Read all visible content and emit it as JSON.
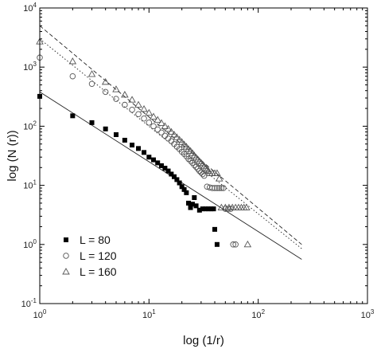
{
  "chart_data": {
    "type": "scatter",
    "title": "",
    "xlabel": "log (1/r)",
    "ylabel": "log (N (r))",
    "xscale": "log",
    "yscale": "log",
    "xlim": [
      1,
      1000
    ],
    "ylim": [
      0.1,
      10000
    ],
    "x_ticks": [
      {
        "base": "10",
        "exp": "0"
      },
      {
        "base": "10",
        "exp": "1"
      },
      {
        "base": "10",
        "exp": "2"
      },
      {
        "base": "10",
        "exp": "3"
      }
    ],
    "y_ticks": [
      {
        "base": "10",
        "exp": "-1"
      },
      {
        "base": "10",
        "exp": "0"
      },
      {
        "base": "10",
        "exp": "1"
      },
      {
        "base": "10",
        "exp": "2"
      },
      {
        "base": "10",
        "exp": "3"
      },
      {
        "base": "10",
        "exp": "4"
      }
    ],
    "grid": false,
    "legend_position": "bottom-left",
    "series": [
      {
        "name": "L = 80",
        "marker": "filled-square",
        "color": "#000000",
        "points": [
          [
            1.0,
            320
          ],
          [
            2.0,
            150
          ],
          [
            3.0,
            115
          ],
          [
            4.0,
            90
          ],
          [
            5.0,
            72
          ],
          [
            6.0,
            58
          ],
          [
            7.0,
            48
          ],
          [
            8.0,
            42
          ],
          [
            9.0,
            36
          ],
          [
            10.0,
            30
          ],
          [
            11.0,
            27
          ],
          [
            12.0,
            24
          ],
          [
            13.0,
            21.5
          ],
          [
            14.0,
            19.5
          ],
          [
            15.0,
            17.5
          ],
          [
            16.0,
            15.5
          ],
          [
            17.0,
            14
          ],
          [
            18.0,
            12.5
          ],
          [
            19.0,
            11
          ],
          [
            20.0,
            9.5
          ],
          [
            21.0,
            8.5
          ],
          [
            22.0,
            7.5
          ],
          [
            23.0,
            5.0
          ],
          [
            24.0,
            4.2
          ],
          [
            25.0,
            4.8
          ],
          [
            26.0,
            6.2
          ],
          [
            27.0,
            4.5
          ],
          [
            29.0,
            3.8
          ],
          [
            31.0,
            4.0
          ],
          [
            33.0,
            4.0
          ],
          [
            35.0,
            4.0
          ],
          [
            37.0,
            4.0
          ],
          [
            39.0,
            4.0
          ],
          [
            40.0,
            1.8
          ],
          [
            42.0,
            1.0
          ]
        ]
      },
      {
        "name": "L = 120",
        "marker": "open-circle",
        "color": "#000000",
        "points": [
          [
            1.0,
            1450
          ],
          [
            2.0,
            700
          ],
          [
            3.0,
            520
          ],
          [
            4.0,
            380
          ],
          [
            5.0,
            290
          ],
          [
            6.0,
            230
          ],
          [
            7.0,
            190
          ],
          [
            8.0,
            160
          ],
          [
            9.0,
            135
          ],
          [
            10.0,
            115
          ],
          [
            11.0,
            100
          ],
          [
            12.0,
            88
          ],
          [
            13.0,
            78
          ],
          [
            14.0,
            69
          ],
          [
            15.0,
            62
          ],
          [
            16.0,
            56
          ],
          [
            17.0,
            50
          ],
          [
            18.0,
            45
          ],
          [
            19.0,
            41
          ],
          [
            20.0,
            37
          ],
          [
            21.0,
            34
          ],
          [
            22.0,
            31
          ],
          [
            23.0,
            28
          ],
          [
            24.0,
            26
          ],
          [
            25.0,
            24
          ],
          [
            26.0,
            22
          ],
          [
            27.0,
            20.5
          ],
          [
            28.0,
            19
          ],
          [
            29.0,
            17.5
          ],
          [
            30.0,
            16.5
          ],
          [
            31.0,
            15.5
          ],
          [
            32.0,
            14.5
          ],
          [
            34.0,
            9.5
          ],
          [
            36.0,
            9.2
          ],
          [
            38.0,
            9.0
          ],
          [
            40.0,
            9.0
          ],
          [
            42.0,
            9.0
          ],
          [
            44.0,
            9.0
          ],
          [
            46.0,
            9.0
          ],
          [
            48.0,
            9.0
          ],
          [
            50.0,
            4.0
          ],
          [
            53.0,
            4.0
          ],
          [
            56.0,
            4.0
          ],
          [
            59.0,
            1.0
          ],
          [
            62.0,
            1.0
          ]
        ]
      },
      {
        "name": "L = 160",
        "marker": "open-triangle",
        "color": "#000000",
        "points": [
          [
            1.0,
            2700
          ],
          [
            2.0,
            1250
          ],
          [
            3.0,
            760
          ],
          [
            4.0,
            560
          ],
          [
            5.0,
            420
          ],
          [
            6.0,
            340
          ],
          [
            7.0,
            280
          ],
          [
            8.0,
            230
          ],
          [
            9.0,
            195
          ],
          [
            10.0,
            168
          ],
          [
            11.0,
            145
          ],
          [
            12.0,
            128
          ],
          [
            13.0,
            113
          ],
          [
            14.0,
            100
          ],
          [
            15.0,
            90
          ],
          [
            16.0,
            80
          ],
          [
            17.0,
            72
          ],
          [
            18.0,
            65
          ],
          [
            19.0,
            59
          ],
          [
            20.0,
            54
          ],
          [
            21.0,
            49
          ],
          [
            22.0,
            45
          ],
          [
            23.0,
            41
          ],
          [
            24.0,
            38
          ],
          [
            25.0,
            35
          ],
          [
            26.0,
            32
          ],
          [
            27.0,
            29.5
          ],
          [
            28.0,
            27.5
          ],
          [
            29.0,
            25.5
          ],
          [
            30.0,
            24
          ],
          [
            31.0,
            22.5
          ],
          [
            32.0,
            21
          ],
          [
            33.0,
            19.5
          ],
          [
            34.0,
            18.5
          ],
          [
            35.0,
            17.5
          ],
          [
            36.0,
            16
          ],
          [
            38.0,
            16
          ],
          [
            40.0,
            16
          ],
          [
            42.0,
            16
          ],
          [
            44.0,
            13
          ],
          [
            46.0,
            4.2
          ],
          [
            50.0,
            4.2
          ],
          [
            54.0,
            4.2
          ],
          [
            58.0,
            4.2
          ],
          [
            62.0,
            4.2
          ],
          [
            66.0,
            4.2
          ],
          [
            70.0,
            4.2
          ],
          [
            74.0,
            4.2
          ],
          [
            78.0,
            4.2
          ],
          [
            80.0,
            1.0
          ]
        ]
      }
    ],
    "fit_lines": [
      {
        "for": "L = 80",
        "style": "solid",
        "x": [
          1,
          250
        ],
        "y": [
          380,
          0.56
        ]
      },
      {
        "for": "L = 120",
        "style": "dotted",
        "x": [
          1,
          250
        ],
        "y": [
          3000,
          0.85
        ]
      },
      {
        "for": "L = 160",
        "style": "dashed",
        "x": [
          1,
          250
        ],
        "y": [
          5000,
          1.0
        ]
      }
    ]
  }
}
